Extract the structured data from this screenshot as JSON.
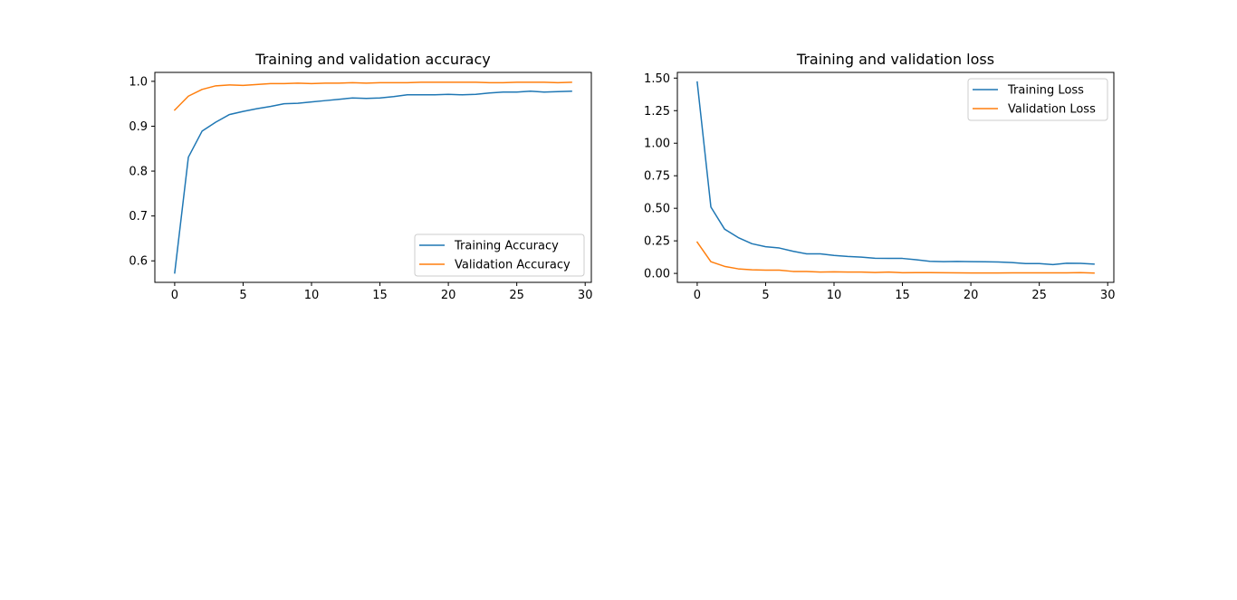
{
  "chart_data": [
    {
      "type": "line",
      "title": "Training and validation accuracy",
      "xlabel": "",
      "ylabel": "",
      "xlim": [
        -1.45,
        30.45
      ],
      "ylim": [
        0.5521,
        1.0199
      ],
      "xticks": [
        0,
        5,
        10,
        15,
        20,
        25,
        30
      ],
      "xtick_labels": [
        "0",
        "5",
        "10",
        "15",
        "20",
        "25",
        "30"
      ],
      "yticks": [
        0.6,
        0.7,
        0.8,
        0.9,
        1.0
      ],
      "ytick_labels": [
        "0.6",
        "0.7",
        "0.8",
        "0.9",
        "1.0"
      ],
      "grid": false,
      "legend_position": "lower-right",
      "x": [
        0,
        1,
        2,
        3,
        4,
        5,
        6,
        7,
        8,
        9,
        10,
        11,
        12,
        13,
        14,
        15,
        16,
        17,
        18,
        19,
        20,
        21,
        22,
        23,
        24,
        25,
        26,
        27,
        28,
        29
      ],
      "series": [
        {
          "name": "Training Accuracy",
          "color": "#1f77b4",
          "values": [
            0.573,
            0.831,
            0.889,
            0.909,
            0.926,
            0.933,
            0.939,
            0.944,
            0.95,
            0.951,
            0.954,
            0.957,
            0.96,
            0.963,
            0.962,
            0.963,
            0.966,
            0.97,
            0.97,
            0.97,
            0.971,
            0.97,
            0.971,
            0.974,
            0.976,
            0.976,
            0.978,
            0.976,
            0.977,
            0.978
          ]
        },
        {
          "name": "Validation Accuracy",
          "color": "#ff7f0e",
          "values": [
            0.936,
            0.967,
            0.982,
            0.99,
            0.992,
            0.991,
            0.993,
            0.995,
            0.995,
            0.996,
            0.995,
            0.996,
            0.996,
            0.997,
            0.996,
            0.997,
            0.997,
            0.997,
            0.998,
            0.998,
            0.998,
            0.998,
            0.998,
            0.997,
            0.997,
            0.998,
            0.998,
            0.998,
            0.997,
            0.998
          ]
        }
      ]
    },
    {
      "type": "line",
      "title": "Training and validation loss",
      "xlabel": "",
      "ylabel": "",
      "xlim": [
        -1.45,
        30.45
      ],
      "ylim": [
        -0.0688,
        1.5438
      ],
      "xticks": [
        0,
        5,
        10,
        15,
        20,
        25,
        30
      ],
      "xtick_labels": [
        "0",
        "5",
        "10",
        "15",
        "20",
        "25",
        "30"
      ],
      "yticks": [
        0.0,
        0.25,
        0.5,
        0.75,
        1.0,
        1.25,
        1.5
      ],
      "ytick_labels": [
        "0.00",
        "0.25",
        "0.50",
        "0.75",
        "1.00",
        "1.25",
        "1.50"
      ],
      "grid": false,
      "legend_position": "upper-right",
      "x": [
        0,
        1,
        2,
        3,
        4,
        5,
        6,
        7,
        8,
        9,
        10,
        11,
        12,
        13,
        14,
        15,
        16,
        17,
        18,
        19,
        20,
        21,
        22,
        23,
        24,
        25,
        26,
        27,
        28,
        29
      ],
      "series": [
        {
          "name": "Training Loss",
          "color": "#1f77b4",
          "values": [
            1.47,
            0.51,
            0.34,
            0.275,
            0.228,
            0.205,
            0.195,
            0.17,
            0.15,
            0.15,
            0.138,
            0.13,
            0.125,
            0.116,
            0.115,
            0.115,
            0.105,
            0.093,
            0.09,
            0.092,
            0.09,
            0.089,
            0.088,
            0.083,
            0.075,
            0.075,
            0.068,
            0.078,
            0.077,
            0.071
          ]
        },
        {
          "name": "Validation Loss",
          "color": "#ff7f0e",
          "values": [
            0.24,
            0.09,
            0.054,
            0.035,
            0.028,
            0.025,
            0.025,
            0.015,
            0.015,
            0.01,
            0.012,
            0.01,
            0.01,
            0.007,
            0.01,
            0.005,
            0.006,
            0.006,
            0.005,
            0.004,
            0.003,
            0.003,
            0.003,
            0.004,
            0.004,
            0.004,
            0.004,
            0.004,
            0.006,
            0.003
          ]
        }
      ]
    }
  ]
}
